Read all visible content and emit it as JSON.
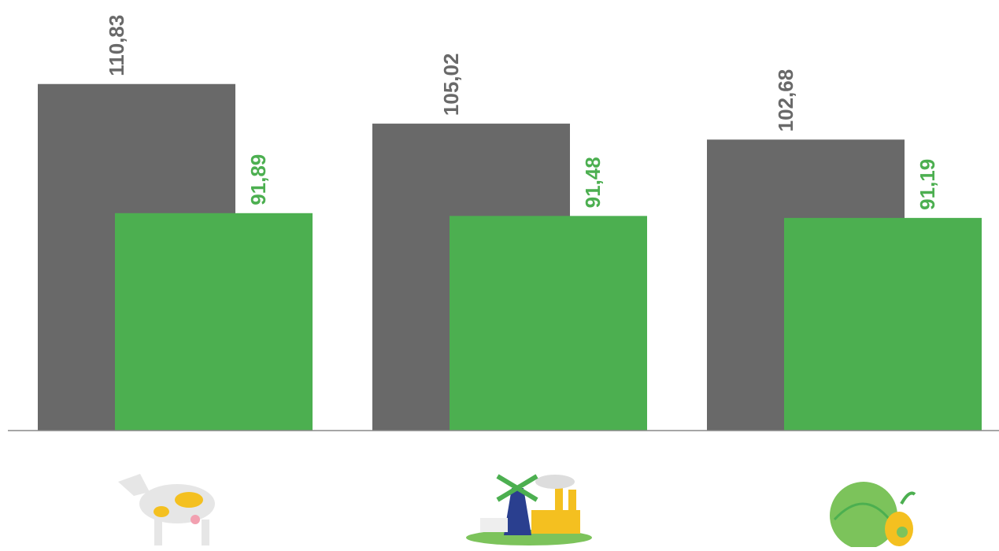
{
  "chart_data": {
    "type": "bar",
    "categories": [
      null,
      null,
      null
    ],
    "series": [
      {
        "color": "#696969",
        "values": [
          110.83,
          105.02,
          102.68
        ],
        "value_labels": [
          "110,83",
          "105,02",
          "102,68"
        ]
      },
      {
        "color": "#4caf50",
        "values": [
          91.89,
          91.48,
          91.19
        ],
        "value_labels": [
          "91,89",
          "91,48",
          "91,19"
        ]
      }
    ],
    "ylim": [
      60,
      122
    ]
  }
}
